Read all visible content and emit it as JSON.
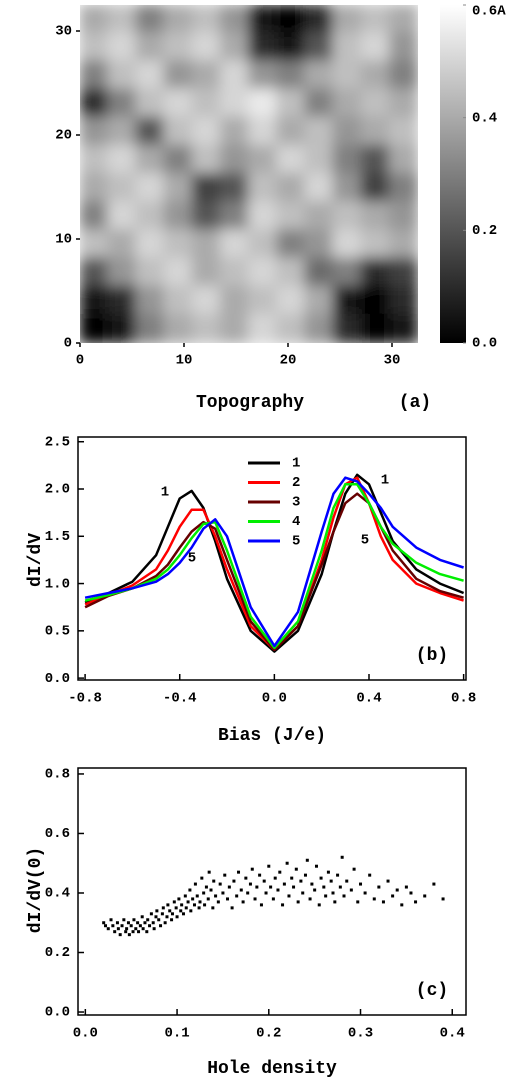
{
  "chart_data": [
    {
      "type": "heatmap",
      "xlabel": "Topography",
      "panel_label": "(a)",
      "xlim": [
        0,
        32.5
      ],
      "ylim": [
        0,
        32.5
      ],
      "xticks": [
        0,
        10,
        20,
        30
      ],
      "yticks": [
        0,
        10,
        20,
        30
      ],
      "clim": [
        0,
        0.6
      ],
      "cticks": [
        {
          "value": 0,
          "label": "0.0"
        },
        0.2,
        0.4,
        {
          "value": 0.6,
          "label": "0.6A"
        }
      ],
      "values": [
        [
          0.4,
          0.45,
          0.3,
          0.4,
          0.45,
          0.35,
          0.05,
          0.0,
          0.1,
          0.4,
          0.45,
          0.4
        ],
        [
          0.45,
          0.5,
          0.4,
          0.45,
          0.5,
          0.4,
          0.1,
          0.05,
          0.2,
          0.45,
          0.5,
          0.35
        ],
        [
          0.3,
          0.45,
          0.5,
          0.35,
          0.4,
          0.5,
          0.35,
          0.3,
          0.4,
          0.45,
          0.4,
          0.3
        ],
        [
          0.1,
          0.3,
          0.45,
          0.5,
          0.45,
          0.5,
          0.55,
          0.45,
          0.3,
          0.4,
          0.45,
          0.4
        ],
        [
          0.35,
          0.4,
          0.2,
          0.45,
          0.5,
          0.4,
          0.5,
          0.4,
          0.45,
          0.35,
          0.4,
          0.45
        ],
        [
          0.45,
          0.5,
          0.4,
          0.3,
          0.45,
          0.35,
          0.4,
          0.5,
          0.45,
          0.3,
          0.2,
          0.4
        ],
        [
          0.4,
          0.45,
          0.5,
          0.4,
          0.15,
          0.2,
          0.45,
          0.4,
          0.5,
          0.35,
          0.15,
          0.3
        ],
        [
          0.3,
          0.5,
          0.45,
          0.35,
          0.2,
          0.3,
          0.5,
          0.45,
          0.4,
          0.45,
          0.4,
          0.35
        ],
        [
          0.45,
          0.4,
          0.5,
          0.45,
          0.4,
          0.5,
          0.45,
          0.3,
          0.35,
          0.5,
          0.45,
          0.4
        ],
        [
          0.2,
          0.35,
          0.45,
          0.5,
          0.4,
          0.45,
          0.5,
          0.45,
          0.25,
          0.3,
          0.1,
          0.15
        ],
        [
          0.05,
          0.1,
          0.35,
          0.45,
          0.5,
          0.4,
          0.45,
          0.5,
          0.4,
          0.05,
          0.0,
          0.1
        ],
        [
          0.0,
          0.05,
          0.3,
          0.4,
          0.45,
          0.4,
          0.5,
          0.45,
          0.35,
          0.1,
          0.0,
          0.05
        ]
      ]
    },
    {
      "type": "line",
      "xlabel": "Bias (J/e)",
      "ylabel": "dI/dV",
      "panel_label": "(b)",
      "annotations": [
        "1",
        "5",
        "1",
        "5"
      ],
      "xlim": [
        -0.83,
        0.81
      ],
      "ylim": [
        -0.02,
        2.55
      ],
      "xticks": [
        -0.8,
        -0.4,
        {
          "value": 0,
          "label": "0.0"
        },
        0.4,
        0.8
      ],
      "yticks": [
        {
          "value": 0,
          "label": "0.0"
        },
        0.5,
        {
          "value": 1,
          "label": "1.0"
        },
        1.5,
        {
          "value": 2,
          "label": "2.0"
        },
        2.5
      ],
      "x": [
        -0.8,
        -0.7,
        -0.6,
        -0.5,
        -0.45,
        -0.4,
        -0.35,
        -0.3,
        -0.25,
        -0.2,
        -0.1,
        0,
        0.1,
        0.2,
        0.25,
        0.3,
        0.35,
        0.4,
        0.45,
        0.5,
        0.6,
        0.7,
        0.8
      ],
      "series": [
        {
          "name": "1",
          "color": "#000000",
          "values": [
            0.8,
            0.9,
            1.02,
            1.3,
            1.6,
            1.9,
            1.98,
            1.8,
            1.45,
            1.05,
            0.5,
            0.28,
            0.5,
            1.1,
            1.55,
            1.95,
            2.15,
            2.05,
            1.75,
            1.45,
            1.15,
            1.0,
            0.9
          ]
        },
        {
          "name": "2",
          "color": "#ff0000",
          "values": [
            0.78,
            0.88,
            0.98,
            1.15,
            1.35,
            1.6,
            1.78,
            1.78,
            1.5,
            1.15,
            0.55,
            0.3,
            0.55,
            1.25,
            1.7,
            2.05,
            2.12,
            1.85,
            1.5,
            1.25,
            1.0,
            0.9,
            0.82
          ]
        },
        {
          "name": "3",
          "color": "#660000",
          "values": [
            0.75,
            0.87,
            0.95,
            1.08,
            1.2,
            1.38,
            1.55,
            1.65,
            1.58,
            1.25,
            0.6,
            0.3,
            0.55,
            1.2,
            1.55,
            1.85,
            1.95,
            1.85,
            1.6,
            1.35,
            1.05,
            0.92,
            0.85
          ]
        },
        {
          "name": "4",
          "color": "#00ee00",
          "values": [
            0.82,
            0.88,
            0.95,
            1.05,
            1.15,
            1.3,
            1.48,
            1.63,
            1.65,
            1.35,
            0.65,
            0.32,
            0.6,
            1.35,
            1.8,
            2.05,
            2.05,
            1.85,
            1.6,
            1.42,
            1.22,
            1.1,
            1.03
          ]
        },
        {
          "name": "5",
          "color": "#0000ff",
          "values": [
            0.85,
            0.9,
            0.95,
            1.02,
            1.1,
            1.22,
            1.38,
            1.58,
            1.68,
            1.5,
            0.75,
            0.34,
            0.7,
            1.55,
            1.95,
            2.12,
            2.08,
            1.95,
            1.8,
            1.6,
            1.38,
            1.25,
            1.17
          ]
        }
      ]
    },
    {
      "type": "scatter",
      "xlabel": "Hole density",
      "ylabel": "dI/dV(0)",
      "panel_label": "(c)",
      "xlim": [
        -0.008,
        0.415
      ],
      "ylim": [
        -0.01,
        0.82
      ],
      "xticks": [
        {
          "value": 0,
          "label": "0.0"
        },
        0.1,
        0.2,
        0.3,
        0.4
      ],
      "yticks": [
        {
          "value": 0,
          "label": "0.0"
        },
        0.2,
        0.4,
        0.6,
        0.8
      ],
      "series": [
        {
          "color": "#000000",
          "x": [
            0.02,
            0.022,
            0.025,
            0.028,
            0.03,
            0.032,
            0.035,
            0.036,
            0.038,
            0.04,
            0.042,
            0.044,
            0.045,
            0.047,
            0.048,
            0.05,
            0.052,
            0.053,
            0.055,
            0.057,
            0.058,
            0.06,
            0.062,
            0.063,
            0.065,
            0.067,
            0.068,
            0.07,
            0.072,
            0.074,
            0.075,
            0.077,
            0.078,
            0.08,
            0.082,
            0.084,
            0.085,
            0.087,
            0.089,
            0.09,
            0.092,
            0.094,
            0.095,
            0.097,
            0.099,
            0.1,
            0.102,
            0.104,
            0.105,
            0.107,
            0.109,
            0.11,
            0.112,
            0.114,
            0.115,
            0.117,
            0.119,
            0.12,
            0.122,
            0.124,
            0.125,
            0.127,
            0.129,
            0.13,
            0.132,
            0.134,
            0.135,
            0.137,
            0.139,
            0.14,
            0.142,
            0.145,
            0.147,
            0.15,
            0.152,
            0.155,
            0.157,
            0.16,
            0.162,
            0.165,
            0.167,
            0.17,
            0.172,
            0.175,
            0.177,
            0.18,
            0.182,
            0.185,
            0.187,
            0.19,
            0.192,
            0.195,
            0.197,
            0.2,
            0.202,
            0.205,
            0.207,
            0.21,
            0.212,
            0.215,
            0.217,
            0.22,
            0.222,
            0.225,
            0.227,
            0.23,
            0.232,
            0.235,
            0.237,
            0.24,
            0.242,
            0.245,
            0.247,
            0.25,
            0.252,
            0.255,
            0.257,
            0.26,
            0.262,
            0.265,
            0.268,
            0.27,
            0.272,
            0.275,
            0.278,
            0.28,
            0.282,
            0.285,
            0.29,
            0.293,
            0.297,
            0.3,
            0.305,
            0.31,
            0.315,
            0.32,
            0.325,
            0.33,
            0.335,
            0.34,
            0.345,
            0.35,
            0.355,
            0.36,
            0.37,
            0.38,
            0.39
          ],
          "values": [
            0.3,
            0.29,
            0.28,
            0.31,
            0.29,
            0.27,
            0.3,
            0.28,
            0.26,
            0.29,
            0.31,
            0.27,
            0.28,
            0.3,
            0.26,
            0.29,
            0.27,
            0.31,
            0.28,
            0.3,
            0.27,
            0.29,
            0.32,
            0.28,
            0.3,
            0.27,
            0.31,
            0.29,
            0.33,
            0.3,
            0.28,
            0.32,
            0.34,
            0.31,
            0.29,
            0.33,
            0.35,
            0.3,
            0.32,
            0.36,
            0.34,
            0.31,
            0.33,
            0.37,
            0.35,
            0.32,
            0.38,
            0.34,
            0.36,
            0.33,
            0.39,
            0.35,
            0.37,
            0.41,
            0.34,
            0.38,
            0.36,
            0.43,
            0.39,
            0.35,
            0.37,
            0.45,
            0.4,
            0.36,
            0.42,
            0.38,
            0.47,
            0.41,
            0.35,
            0.44,
            0.39,
            0.37,
            0.43,
            0.4,
            0.46,
            0.38,
            0.42,
            0.35,
            0.44,
            0.39,
            0.47,
            0.41,
            0.37,
            0.45,
            0.4,
            0.43,
            0.48,
            0.38,
            0.42,
            0.46,
            0.36,
            0.44,
            0.4,
            0.49,
            0.42,
            0.38,
            0.45,
            0.41,
            0.47,
            0.36,
            0.43,
            0.5,
            0.39,
            0.45,
            0.42,
            0.48,
            0.37,
            0.44,
            0.4,
            0.46,
            0.51,
            0.38,
            0.43,
            0.41,
            0.49,
            0.36,
            0.45,
            0.42,
            0.39,
            0.47,
            0.44,
            0.4,
            0.37,
            0.46,
            0.42,
            0.52,
            0.39,
            0.44,
            0.41,
            0.48,
            0.37,
            0.43,
            0.4,
            0.46,
            0.38,
            0.42,
            0.37,
            0.44,
            0.39,
            0.41,
            0.36,
            0.42,
            0.4,
            0.37,
            0.39,
            0.43,
            0.38
          ]
        }
      ]
    }
  ]
}
